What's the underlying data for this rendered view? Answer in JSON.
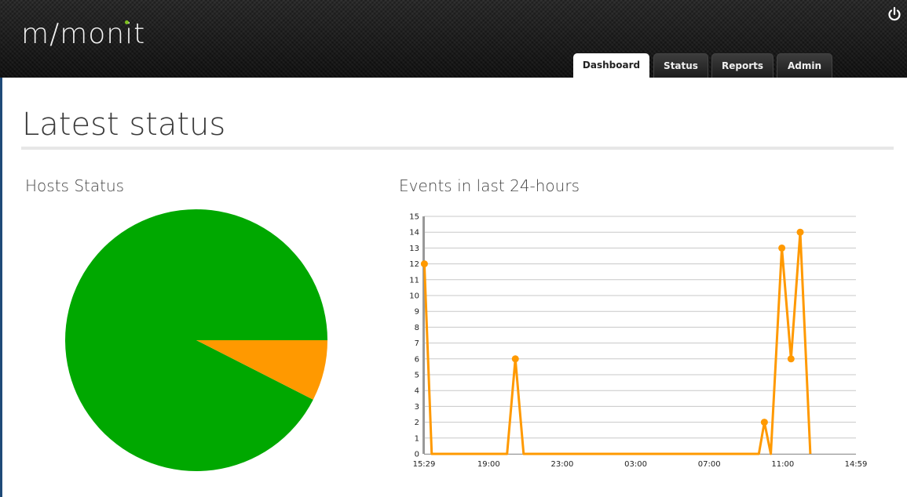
{
  "header": {
    "logo": "m/monit",
    "tabs": [
      {
        "label": "Dashboard",
        "active": true
      },
      {
        "label": "Status",
        "active": false
      },
      {
        "label": "Reports",
        "active": false
      },
      {
        "label": "Admin",
        "active": false
      }
    ],
    "power_icon": "power-icon"
  },
  "main": {
    "page_title": "Latest status",
    "hosts_title": "Hosts Status",
    "events_title": "Events in last 24-hours"
  },
  "colors": {
    "ok": "#00a800",
    "warning": "#ff9900",
    "line": "#ff9900"
  },
  "chart_data": [
    {
      "type": "pie",
      "title": "Hosts Status",
      "slices": [
        {
          "value": 0.925,
          "color": "#00a800"
        },
        {
          "value": 0.075,
          "color": "#ff9900"
        }
      ]
    },
    {
      "type": "line",
      "title": "Events in last 24-hours",
      "ylim": [
        0,
        15
      ],
      "yticks": [
        "0",
        "1",
        "2",
        "3",
        "4",
        "5",
        "6",
        "7",
        "8",
        "9",
        "10",
        "11",
        "12",
        "13",
        "14",
        "15"
      ],
      "xlim_hours": [
        15.483,
        38.983
      ],
      "xticks": [
        {
          "label": "15:29",
          "hour": 15.483
        },
        {
          "label": "19:00",
          "hour": 19.0
        },
        {
          "label": "23:00",
          "hour": 23.0
        },
        {
          "label": "03:00",
          "hour": 27.0
        },
        {
          "label": "07:00",
          "hour": 31.0
        },
        {
          "label": "11:00",
          "hour": 35.0
        },
        {
          "label": "14:59",
          "hour": 38.983
        }
      ],
      "series": [
        {
          "points": [
            {
              "hour": 15.5,
              "value": 12,
              "marker": true
            },
            {
              "hour": 15.9,
              "value": 0,
              "marker": false
            },
            {
              "hour": 20.0,
              "value": 0,
              "marker": false
            },
            {
              "hour": 20.45,
              "value": 6,
              "marker": true
            },
            {
              "hour": 20.9,
              "value": 0,
              "marker": false
            },
            {
              "hour": 33.7,
              "value": 0,
              "marker": false
            },
            {
              "hour": 34.0,
              "value": 2,
              "marker": true
            },
            {
              "hour": 34.35,
              "value": 0,
              "marker": false
            },
            {
              "hour": 34.95,
              "value": 13,
              "marker": true
            },
            {
              "hour": 35.45,
              "value": 6,
              "marker": true
            },
            {
              "hour": 35.95,
              "value": 14,
              "marker": true
            },
            {
              "hour": 36.5,
              "value": 0,
              "marker": false
            }
          ]
        }
      ]
    }
  ]
}
